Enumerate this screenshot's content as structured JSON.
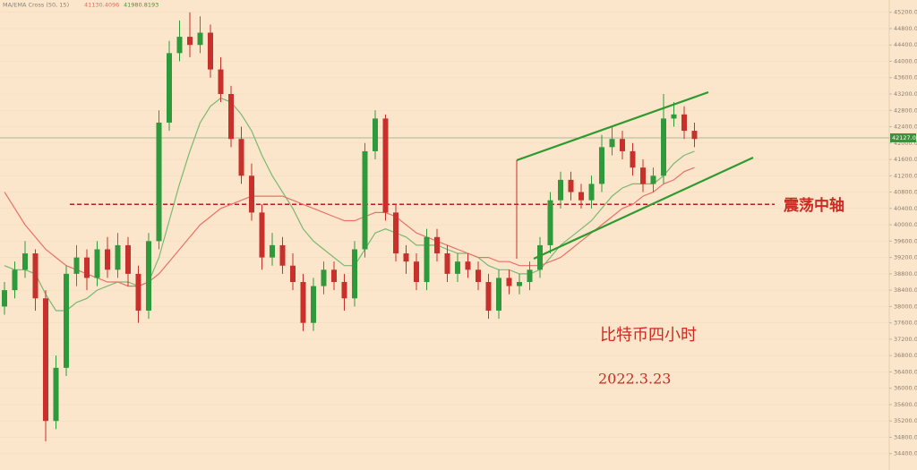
{
  "chart_data": {
    "type": "candlestick",
    "indicator": {
      "name": "MA/EMA Cross (50, 15)",
      "values": [
        41130.4096,
        41980.8193
      ]
    },
    "candles": {
      "open": [
        38000,
        38400,
        38900,
        39300,
        38200,
        35200,
        36500,
        38800,
        39200,
        38700,
        39400,
        38900,
        39500,
        38800,
        37900,
        39600,
        42500,
        44200,
        44600,
        44400,
        44700,
        43800,
        43200,
        42100,
        41200,
        40300,
        39200,
        39500,
        39000,
        38600,
        37600,
        38500,
        38900,
        38600,
        38200,
        39400,
        41800,
        42600,
        40300,
        39300,
        39100,
        38600,
        39700,
        39300,
        38800,
        39100,
        38900,
        38600,
        37900,
        38700,
        38500,
        38600,
        38900,
        39500,
        40600,
        41100,
        40800,
        40600,
        41000,
        41900,
        42100,
        41800,
        41400,
        41000,
        41200,
        42600,
        42700,
        42300
      ],
      "high": [
        38600,
        39100,
        39600,
        39400,
        38400,
        36800,
        39000,
        39500,
        39400,
        39600,
        39700,
        39800,
        39700,
        39000,
        39800,
        42800,
        44500,
        45000,
        45200,
        45100,
        44900,
        44100,
        43400,
        42400,
        41500,
        40500,
        39800,
        39700,
        39300,
        38800,
        38700,
        39100,
        39100,
        38800,
        39600,
        42000,
        42800,
        42700,
        40500,
        39500,
        39300,
        39900,
        39900,
        39500,
        39300,
        39300,
        39100,
        38800,
        38900,
        38900,
        38800,
        39100,
        39700,
        40800,
        41300,
        41300,
        41000,
        41200,
        42200,
        42400,
        42300,
        42000,
        41600,
        41400,
        43200,
        43000,
        42900,
        42500
      ],
      "low": [
        37800,
        38200,
        38700,
        37900,
        34700,
        35000,
        36300,
        38500,
        38400,
        38500,
        38700,
        38700,
        38500,
        37600,
        37700,
        39400,
        42300,
        44000,
        44100,
        44200,
        43600,
        43000,
        41900,
        41000,
        40100,
        38900,
        39000,
        38800,
        38400,
        37400,
        37400,
        38300,
        38400,
        37900,
        38000,
        39200,
        41600,
        40100,
        39100,
        38800,
        38400,
        38400,
        39100,
        38600,
        38600,
        38700,
        38400,
        37700,
        37700,
        38300,
        38300,
        38400,
        38700,
        39300,
        40400,
        40600,
        40400,
        40400,
        40800,
        41700,
        41600,
        41200,
        40800,
        40800,
        41000,
        42400,
        42100,
        41900
      ],
      "close": [
        38400,
        38900,
        39300,
        38200,
        35200,
        36500,
        38800,
        39200,
        38700,
        39400,
        38900,
        39500,
        38800,
        37900,
        39600,
        42500,
        44200,
        44600,
        44400,
        44700,
        43800,
        43200,
        42100,
        41200,
        40300,
        39200,
        39500,
        39000,
        38600,
        37600,
        38500,
        38900,
        38600,
        38200,
        39400,
        41800,
        42600,
        40300,
        39300,
        39100,
        38600,
        39700,
        39300,
        38800,
        39100,
        38900,
        38600,
        37900,
        38700,
        38500,
        38600,
        38900,
        39500,
        40600,
        41100,
        40800,
        40600,
        41000,
        41900,
        42100,
        41800,
        41400,
        41000,
        41200,
        42600,
        42700,
        42300,
        42100
      ]
    },
    "up_color": "#2f9a3b",
    "down_color": "#c7302b",
    "series": [
      {
        "color": "#7ab873",
        "values": [
          39000,
          38900,
          38900,
          38800,
          38300,
          37900,
          37900,
          38100,
          38200,
          38400,
          38500,
          38600,
          38600,
          38500,
          38600,
          39200,
          40100,
          41000,
          41800,
          42500,
          42900,
          43100,
          43000,
          42700,
          42300,
          41700,
          41200,
          40800,
          40400,
          39900,
          39600,
          39400,
          39200,
          39000,
          39000,
          39400,
          39800,
          39900,
          39800,
          39700,
          39500,
          39500,
          39500,
          39400,
          39300,
          39300,
          39200,
          39000,
          38900,
          38900,
          38800,
          38800,
          38900,
          39200,
          39500,
          39700,
          39900,
          40100,
          40400,
          40700,
          40900,
          41000,
          41000,
          41000,
          41200,
          41500,
          41700,
          41800
        ]
      },
      {
        "color": "#e8726a",
        "values": [
          40800,
          40400,
          40000,
          39700,
          39400,
          39200,
          39000,
          38900,
          38800,
          38700,
          38600,
          38600,
          38500,
          38500,
          38600,
          38800,
          39100,
          39400,
          39700,
          40000,
          40200,
          40400,
          40500,
          40600,
          40700,
          40700,
          40700,
          40700,
          40600,
          40500,
          40400,
          40300,
          40200,
          40100,
          40100,
          40200,
          40300,
          40300,
          40200,
          40000,
          39800,
          39700,
          39600,
          39500,
          39400,
          39300,
          39200,
          39200,
          39100,
          39100,
          39000,
          39000,
          39000,
          39100,
          39200,
          39400,
          39600,
          39800,
          40000,
          40200,
          40400,
          40500,
          40700,
          40800,
          41000,
          41100,
          41300,
          41400
        ]
      }
    ],
    "ylim": [
      34000,
      45500
    ],
    "yticks": [
      {
        "value": 34400,
        "label": "34400.00"
      },
      {
        "value": 34800,
        "label": "34800.00"
      },
      {
        "value": 35200,
        "label": "35200.00"
      },
      {
        "value": 35600,
        "label": "35600.00"
      },
      {
        "value": 36000,
        "label": "36000.00"
      },
      {
        "value": 36400,
        "label": "36400.00"
      },
      {
        "value": 36800,
        "label": "36800.00"
      },
      {
        "value": 37200,
        "label": "37200.00"
      },
      {
        "value": 37600,
        "label": "37600.00"
      },
      {
        "value": 38000,
        "label": "38000.00"
      },
      {
        "value": 38400,
        "label": "38400.00"
      },
      {
        "value": 38800,
        "label": "38800.00"
      },
      {
        "value": 39200,
        "label": "39200.00"
      },
      {
        "value": 39600,
        "label": "39600.00"
      },
      {
        "value": 40000,
        "label": "40000.00"
      },
      {
        "value": 40400,
        "label": "40400.00"
      },
      {
        "value": 40800,
        "label": "40800.00"
      },
      {
        "value": 41200,
        "label": "41200.00"
      },
      {
        "value": 41600,
        "label": "41600.00"
      },
      {
        "value": 42000,
        "label": "42000.00"
      },
      {
        "value": 42400,
        "label": "42400.00"
      },
      {
        "value": 42800,
        "label": "42800.00"
      },
      {
        "value": 43200,
        "label": "43200.00"
      },
      {
        "value": 43600,
        "label": "43600.00"
      },
      {
        "value": 44000,
        "label": "44000.00"
      },
      {
        "value": 44400,
        "label": "44400.00"
      },
      {
        "value": 44800,
        "label": "44800.00"
      },
      {
        "value": 45200,
        "label": "45200.00"
      }
    ],
    "grid": true,
    "current_price": {
      "value": 42127,
      "label": "42127.00"
    },
    "axis_level": {
      "value": 40500,
      "label": "震荡中轴"
    },
    "annotations": [
      "比特币四小时",
      "2022.3.23"
    ]
  }
}
